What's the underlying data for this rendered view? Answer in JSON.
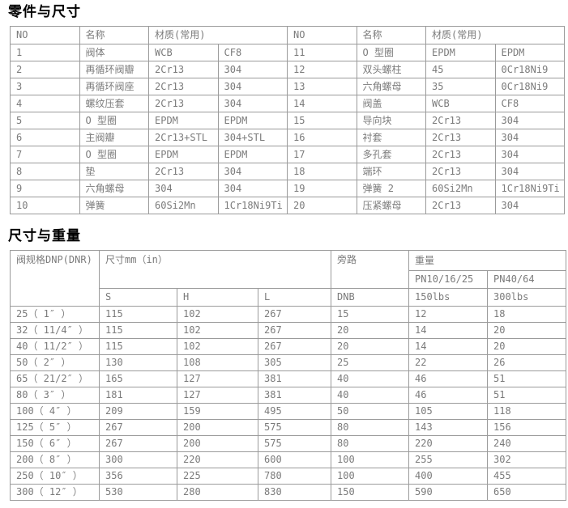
{
  "sections": {
    "parts_title": "零件与尺寸",
    "dims_title": "尺寸与重量"
  },
  "parts_table": {
    "headers": {
      "no": "NO",
      "name": "名称",
      "material": "材质(常用)"
    },
    "left_rows": [
      {
        "no": "1",
        "name": "阀体",
        "mat1": "WCB",
        "mat2": "CF8"
      },
      {
        "no": "2",
        "name": "再循环阀瓣",
        "mat1": "2Cr13",
        "mat2": "304"
      },
      {
        "no": "3",
        "name": "再循环阀座",
        "mat1": "2Cr13",
        "mat2": "304"
      },
      {
        "no": "4",
        "name": "螺纹压套",
        "mat1": "2Cr13",
        "mat2": "304"
      },
      {
        "no": "5",
        "name": "O 型圈",
        "mat1": "EPDM",
        "mat2": "EPDM"
      },
      {
        "no": "6",
        "name": "主阀瓣",
        "mat1": "2Cr13+STL",
        "mat2": "304+STL"
      },
      {
        "no": "7",
        "name": "O 型圈",
        "mat1": "EPDM",
        "mat2": "EPDM"
      },
      {
        "no": "8",
        "name": "垫",
        "mat1": "2Cr13",
        "mat2": "304"
      },
      {
        "no": "9",
        "name": "六角螺母",
        "mat1": "304",
        "mat2": "304"
      },
      {
        "no": "10",
        "name": "弹簧",
        "mat1": "60Si2Mn",
        "mat2": "1Cr18Ni9Ti"
      }
    ],
    "right_rows": [
      {
        "no": "11",
        "name": "O 型圈",
        "mat1": "EPDM",
        "mat2": "EPDM"
      },
      {
        "no": "12",
        "name": "双头螺柱",
        "mat1": "45",
        "mat2": "0Cr18Ni9"
      },
      {
        "no": "13",
        "name": "六角螺母",
        "mat1": "35",
        "mat2": "0Cr18Ni9"
      },
      {
        "no": "14",
        "name": "阀盖",
        "mat1": "WCB",
        "mat2": "CF8"
      },
      {
        "no": "15",
        "name": "导向块",
        "mat1": "2Cr13",
        "mat2": "304"
      },
      {
        "no": "16",
        "name": "衬套",
        "mat1": "2Cr13",
        "mat2": "304"
      },
      {
        "no": "17",
        "name": "多孔套",
        "mat1": "2Cr13",
        "mat2": "304"
      },
      {
        "no": "18",
        "name": "端环",
        "mat1": "2Cr13",
        "mat2": "304"
      },
      {
        "no": "19",
        "name": "弹簧 2",
        "mat1": "60Si2Mn",
        "mat2": "1Cr18Ni9Ti"
      },
      {
        "no": "20",
        "name": "压紧螺母",
        "mat1": "2Cr13",
        "mat2": "304"
      }
    ]
  },
  "dims_table": {
    "headers": {
      "spec": "阀规格DNP(DNR)",
      "size": "尺寸mm（in）",
      "s": "S",
      "h": "H",
      "l": "L",
      "bypass": "旁路",
      "dnb": "DNB",
      "weight": "重量",
      "pn_low": "PN10/16/25",
      "pn_high": "PN40/64",
      "lbs_low": "150lbs",
      "lbs_high": "300lbs"
    },
    "rows": [
      {
        "spec": "25（ 1″ ）",
        "s": "115",
        "h": "102",
        "l": "267",
        "dnb": "15",
        "w_low": "12",
        "w_high": "18"
      },
      {
        "spec": "32（ 11/4″ ）",
        "s": "115",
        "h": "102",
        "l": "267",
        "dnb": "20",
        "w_low": "14",
        "w_high": "20"
      },
      {
        "spec": "40（ 11/2″ ）",
        "s": "115",
        "h": "102",
        "l": "267",
        "dnb": "20",
        "w_low": "14",
        "w_high": "20"
      },
      {
        "spec": "50（ 2″ ）",
        "s": "130",
        "h": "108",
        "l": "305",
        "dnb": "25",
        "w_low": "22",
        "w_high": "26"
      },
      {
        "spec": "65（ 21/2″ ）",
        "s": "165",
        "h": "127",
        "l": "381",
        "dnb": "40",
        "w_low": "46",
        "w_high": "51"
      },
      {
        "spec": "80（ 3″ ）",
        "s": "181",
        "h": "127",
        "l": "381",
        "dnb": "40",
        "w_low": "46",
        "w_high": "51"
      },
      {
        "spec": "100（ 4″ ）",
        "s": "209",
        "h": "159",
        "l": "495",
        "dnb": "50",
        "w_low": "105",
        "w_high": "118"
      },
      {
        "spec": "125（ 5″ ）",
        "s": "267",
        "h": "200",
        "l": "575",
        "dnb": "80",
        "w_low": "143",
        "w_high": "156"
      },
      {
        "spec": "150（ 6″ ）",
        "s": "267",
        "h": "200",
        "l": "575",
        "dnb": "80",
        "w_low": "220",
        "w_high": "240"
      },
      {
        "spec": "200（ 8″ ）",
        "s": "300",
        "h": "220",
        "l": "600",
        "dnb": "100",
        "w_low": "255",
        "w_high": "302"
      },
      {
        "spec": "250（ 10″ ）",
        "s": "356",
        "h": "225",
        "l": "780",
        "dnb": "100",
        "w_low": "400",
        "w_high": "455"
      },
      {
        "spec": "300（ 12″ ）",
        "s": "530",
        "h": "280",
        "l": "830",
        "dnb": "150",
        "w_low": "590",
        "w_high": "650"
      }
    ]
  }
}
